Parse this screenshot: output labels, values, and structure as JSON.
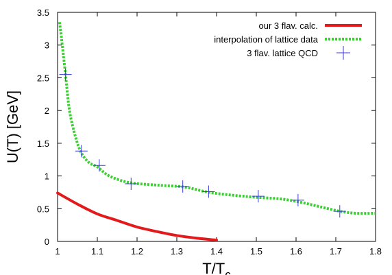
{
  "chart_data": {
    "type": "line",
    "xlabel": "T/T",
    "xlabel_subscript": "c",
    "ylabel": "U(T) [GeV]",
    "xlim": [
      1,
      1.8
    ],
    "ylim": [
      0,
      3.5
    ],
    "x_ticks": [
      1,
      1.1,
      1.2,
      1.3,
      1.4,
      1.5,
      1.6,
      1.7,
      1.8
    ],
    "x_tick_labels": [
      "1",
      "1.1",
      "1.2",
      "1.3",
      "1.4",
      "1.5",
      "1.6",
      "1.7",
      "1.8"
    ],
    "y_ticks": [
      0,
      0.5,
      1,
      1.5,
      2,
      2.5,
      3,
      3.5
    ],
    "y_tick_labels": [
      "0",
      "0.5",
      "1",
      "1.5",
      "2",
      "2.5",
      "3",
      "3.5"
    ],
    "grid": false,
    "legend_position": "top-right",
    "series": [
      {
        "name": "our 3 flav. calc.",
        "style": "solid",
        "color": "#e31a1c",
        "x": [
          1.0,
          1.05,
          1.1,
          1.15,
          1.2,
          1.25,
          1.3,
          1.35,
          1.4
        ],
        "y": [
          0.74,
          0.57,
          0.42,
          0.32,
          0.22,
          0.15,
          0.09,
          0.05,
          0.02
        ]
      },
      {
        "name": "interpolation of lattice data",
        "style": "dashed",
        "color": "#39d12f",
        "x": [
          1.005,
          1.01,
          1.02,
          1.03,
          1.045,
          1.06,
          1.08,
          1.1,
          1.13,
          1.18,
          1.25,
          1.32,
          1.38,
          1.45,
          1.51,
          1.56,
          1.61,
          1.66,
          1.71,
          1.75,
          1.8
        ],
        "y": [
          3.35,
          3.1,
          2.55,
          2.0,
          1.6,
          1.35,
          1.2,
          1.14,
          1.0,
          0.9,
          0.86,
          0.83,
          0.75,
          0.7,
          0.67,
          0.65,
          0.6,
          0.53,
          0.46,
          0.43,
          0.43
        ]
      },
      {
        "name": "3 flav. lattice QCD",
        "style": "markers",
        "color": "#3a3adf",
        "x": [
          1.02,
          1.06,
          1.105,
          1.185,
          1.315,
          1.38,
          1.505,
          1.605,
          1.71
        ],
        "y": [
          2.55,
          1.38,
          1.16,
          0.88,
          0.84,
          0.76,
          0.69,
          0.63,
          0.46
        ]
      }
    ]
  }
}
